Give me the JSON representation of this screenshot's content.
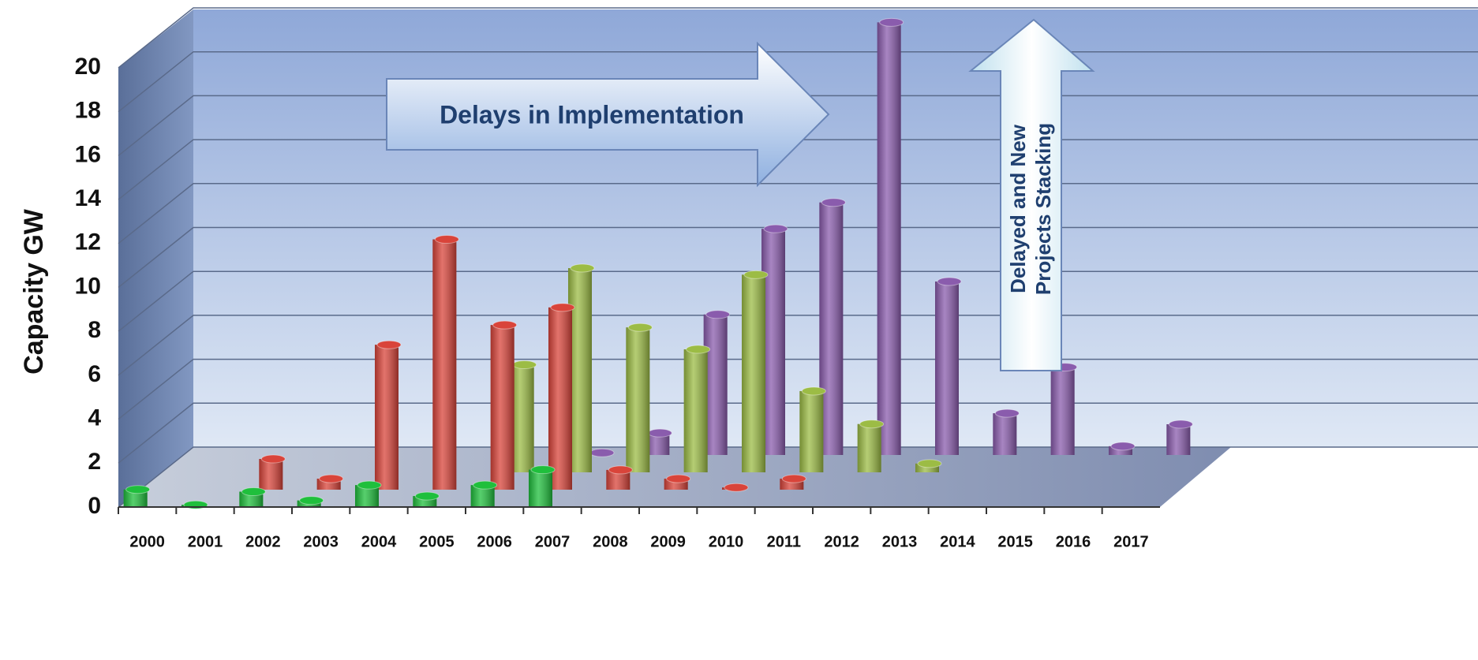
{
  "chart_data": {
    "type": "bar3d",
    "ylabel": "Capacity GW",
    "categories": [
      "2000",
      "2001",
      "2002",
      "2003",
      "2004",
      "2005",
      "2006",
      "2007",
      "2008",
      "2009",
      "2010",
      "2011",
      "2012",
      "2013",
      "2014",
      "2015",
      "2016",
      "2017"
    ],
    "series": [
      {
        "color": "#1fbf3c",
        "values": [
          0.8,
          0.1,
          0.7,
          0.3,
          1.0,
          0.5,
          1.0,
          1.7,
          null,
          null,
          null,
          null,
          null,
          null,
          null,
          null,
          null,
          null
        ]
      },
      {
        "color": "#d9443a",
        "values": [
          null,
          null,
          1.4,
          0.5,
          6.6,
          11.4,
          7.5,
          8.3,
          0.9,
          0.5,
          0.1,
          0.5,
          null,
          null,
          null,
          null,
          null,
          null
        ]
      },
      {
        "color": "#9cbc45",
        "values": [
          null,
          null,
          null,
          null,
          null,
          null,
          4.9,
          9.3,
          6.6,
          5.6,
          9.0,
          3.7,
          2.2,
          0.4,
          null,
          null,
          null,
          null
        ]
      },
      {
        "color": "#8a5cad",
        "values": [
          null,
          null,
          null,
          null,
          null,
          null,
          null,
          0.1,
          1.0,
          6.4,
          10.3,
          11.5,
          19.7,
          7.9,
          1.9,
          4.0,
          0.4,
          1.4
        ]
      }
    ],
    "ylim": [
      0,
      20
    ],
    "yticks": [
      0,
      2,
      4,
      6,
      8,
      10,
      12,
      14,
      16,
      18,
      20
    ],
    "grid": true,
    "annotations": {
      "delays": "Delays in Implementation",
      "stacking": [
        "Delayed and New",
        "Projects Stacking"
      ]
    }
  }
}
